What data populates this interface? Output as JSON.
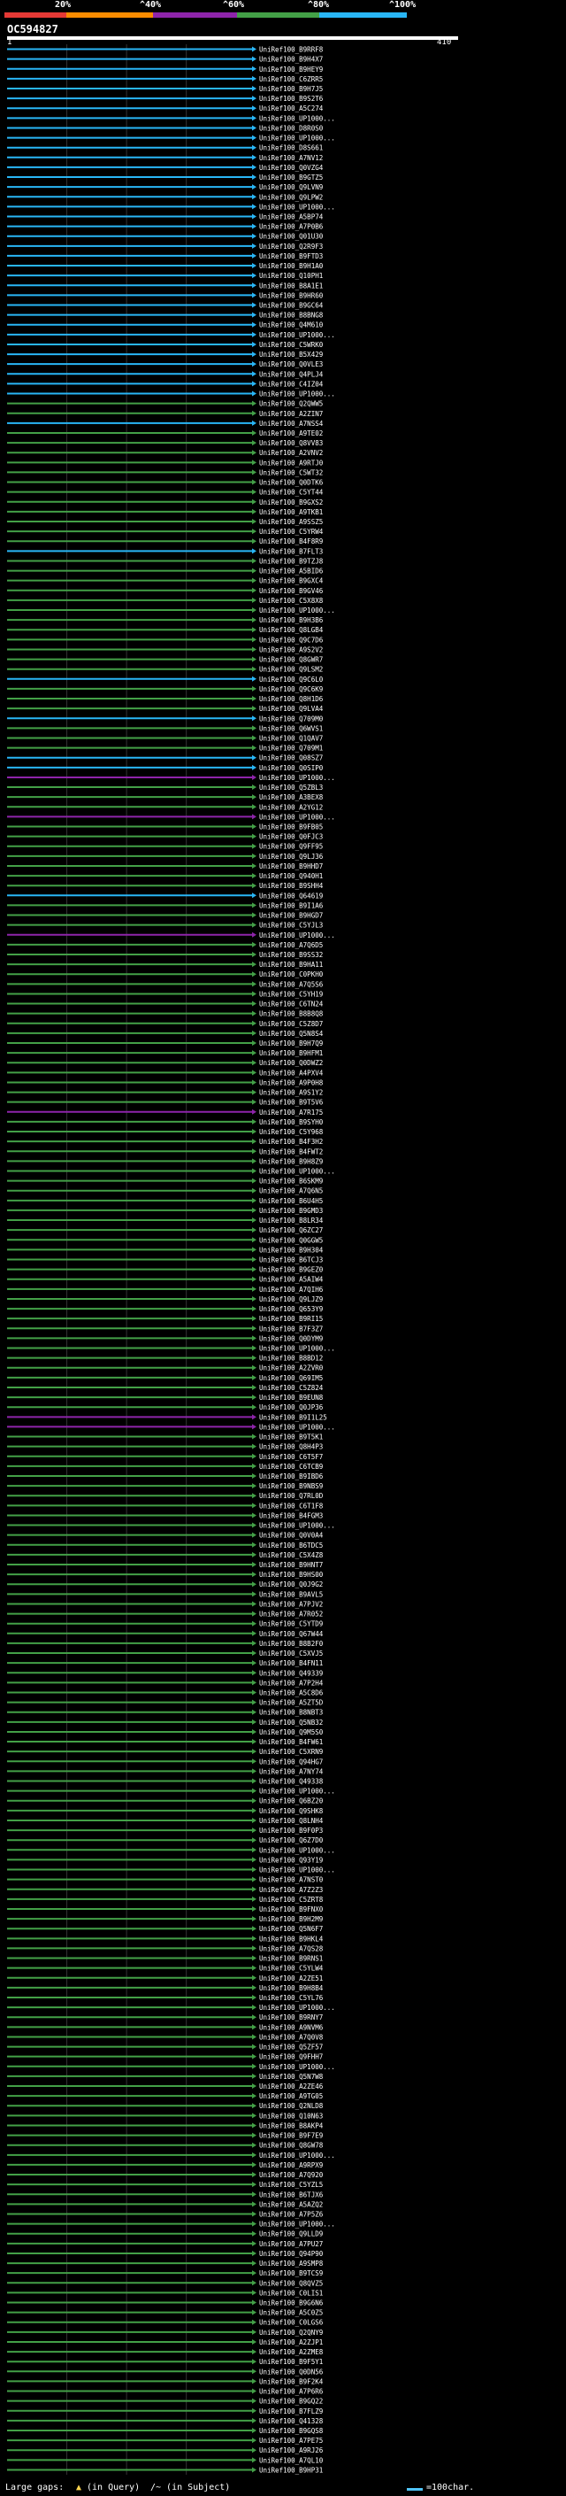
{
  "legend": {
    "labels": [
      "20%",
      "^40%",
      "^60%",
      "^80%",
      "^100%"
    ],
    "colors": [
      "#e53935",
      "#fb8c00",
      "#8e24aa",
      "#43a047",
      "#29b6f6"
    ]
  },
  "header": {
    "query_id": "OC594827",
    "ruler_start": "1",
    "ruler_end": "410"
  },
  "footer": {
    "gaps_label": "Large gaps: ",
    "query_marker": "▲",
    "query_text": "(in Query)",
    "subject_text": "/~ (in Subject)",
    "scale_text": "=100char."
  },
  "chart_data": {
    "type": "alignment",
    "query_length": 410,
    "hits": [
      {
        "id": "UniRef100_B9RRF8",
        "cat": 4
      },
      {
        "id": "UniRef100_B9H4X7",
        "cat": 4
      },
      {
        "id": "UniRef100_B9HEY9",
        "cat": 4
      },
      {
        "id": "UniRef100_C6ZRR5",
        "cat": 4
      },
      {
        "id": "UniRef100_B9H7J5",
        "cat": 4
      },
      {
        "id": "UniRef100_B9S2T6",
        "cat": 4
      },
      {
        "id": "UniRef100_A5C274",
        "cat": 4
      },
      {
        "id": "UniRef100_UP1000...",
        "cat": 4
      },
      {
        "id": "UniRef100_D8R0S0",
        "cat": 4
      },
      {
        "id": "UniRef100_UP1000...",
        "cat": 4
      },
      {
        "id": "UniRef100_D8S661",
        "cat": 4
      },
      {
        "id": "UniRef100_A7NV12",
        "cat": 4
      },
      {
        "id": "UniRef100_Q0VZG4",
        "cat": 4
      },
      {
        "id": "UniRef100_B9GTZ5",
        "cat": 4
      },
      {
        "id": "UniRef100_Q9LVN9",
        "cat": 4
      },
      {
        "id": "UniRef100_Q9LPW2",
        "cat": 4
      },
      {
        "id": "UniRef100_UP1000...",
        "cat": 4
      },
      {
        "id": "UniRef100_A5BP74",
        "cat": 4
      },
      {
        "id": "UniRef100_A7P0B6",
        "cat": 4
      },
      {
        "id": "UniRef100_Q01U30",
        "cat": 4
      },
      {
        "id": "UniRef100_Q2R9F3",
        "cat": 4
      },
      {
        "id": "UniRef100_B9FTD3",
        "cat": 4
      },
      {
        "id": "UniRef100_B9H1A0",
        "cat": 4
      },
      {
        "id": "UniRef100_Q10PH1",
        "cat": 4
      },
      {
        "id": "UniRef100_B8A1E1",
        "cat": 4
      },
      {
        "id": "UniRef100_B9HR60",
        "cat": 4
      },
      {
        "id": "UniRef100_B9GC64",
        "cat": 4
      },
      {
        "id": "UniRef100_B8BNG8",
        "cat": 4
      },
      {
        "id": "UniRef100_Q4M610",
        "cat": 4
      },
      {
        "id": "UniRef100_UP1000...",
        "cat": 4
      },
      {
        "id": "UniRef100_C5WRK0",
        "cat": 4
      },
      {
        "id": "UniRef100_B5X429",
        "cat": 4
      },
      {
        "id": "UniRef100_Q0VLE3",
        "cat": 4
      },
      {
        "id": "UniRef100_Q4PLJ4",
        "cat": 4
      },
      {
        "id": "UniRef100_C4IZ04",
        "cat": 4
      },
      {
        "id": "UniRef100_UP1000...",
        "cat": 4
      },
      {
        "id": "UniRef100_Q2QWW5",
        "cat": 3
      },
      {
        "id": "UniRef100_A2ZIN7",
        "cat": 3
      },
      {
        "id": "UniRef100_A7NSS4",
        "cat": 4
      },
      {
        "id": "UniRef100_A9TE02",
        "cat": 3
      },
      {
        "id": "UniRef100_Q8VV83",
        "cat": 3
      },
      {
        "id": "UniRef100_A2VNV2",
        "cat": 3
      },
      {
        "id": "UniRef100_A9RTJ0",
        "cat": 3
      },
      {
        "id": "UniRef100_C5WT32",
        "cat": 3
      },
      {
        "id": "UniRef100_Q0DTK6",
        "cat": 3
      },
      {
        "id": "UniRef100_C5YT44",
        "cat": 3
      },
      {
        "id": "UniRef100_B9GXS2",
        "cat": 3
      },
      {
        "id": "UniRef100_A9TKB1",
        "cat": 3
      },
      {
        "id": "UniRef100_A9SSZ5",
        "cat": 3
      },
      {
        "id": "UniRef100_C5YRW4",
        "cat": 3
      },
      {
        "id": "UniRef100_B4F8R9",
        "cat": 3
      },
      {
        "id": "UniRef100_B7FLT3",
        "cat": 4
      },
      {
        "id": "UniRef100_B9TZJ8",
        "cat": 3
      },
      {
        "id": "UniRef100_A5BID6",
        "cat": 3
      },
      {
        "id": "UniRef100_B9GXC4",
        "cat": 3
      },
      {
        "id": "UniRef100_B9GV46",
        "cat": 3
      },
      {
        "id": "UniRef100_C5X8X8",
        "cat": 3
      },
      {
        "id": "UniRef100_UP1000...",
        "cat": 3
      },
      {
        "id": "UniRef100_B9H3B6",
        "cat": 3
      },
      {
        "id": "UniRef100_Q8LGB4",
        "cat": 3
      },
      {
        "id": "UniRef100_Q9C7D6",
        "cat": 3
      },
      {
        "id": "UniRef100_A9S2V2",
        "cat": 3
      },
      {
        "id": "UniRef100_Q8GWR7",
        "cat": 3
      },
      {
        "id": "UniRef100_Q9LSM2",
        "cat": 3
      },
      {
        "id": "UniRef100_Q9C6L0",
        "cat": 4
      },
      {
        "id": "UniRef100_Q9C6K9",
        "cat": 3
      },
      {
        "id": "UniRef100_Q8H1D6",
        "cat": 3
      },
      {
        "id": "UniRef100_Q9LVA4",
        "cat": 3
      },
      {
        "id": "UniRef100_Q709M0",
        "cat": 4
      },
      {
        "id": "UniRef100_Q6WVS1",
        "cat": 3
      },
      {
        "id": "UniRef100_Q1QAV7",
        "cat": 3
      },
      {
        "id": "UniRef100_Q709M1",
        "cat": 3
      },
      {
        "id": "UniRef100_Q08SZ7",
        "cat": 4
      },
      {
        "id": "UniRef100_Q0SIP0",
        "cat": 4
      },
      {
        "id": "UniRef100_UP1000...",
        "cat": 2
      },
      {
        "id": "UniRef100_Q5ZBL3",
        "cat": 3
      },
      {
        "id": "UniRef100_A3BEX8",
        "cat": 3
      },
      {
        "id": "UniRef100_A2YG12",
        "cat": 3
      },
      {
        "id": "UniRef100_UP1000...",
        "cat": 2
      },
      {
        "id": "UniRef100_B9FB05",
        "cat": 3
      },
      {
        "id": "UniRef100_Q0FJC3",
        "cat": 3
      },
      {
        "id": "UniRef100_Q9FF95",
        "cat": 3
      },
      {
        "id": "UniRef100_Q9LJ36",
        "cat": 3
      },
      {
        "id": "UniRef100_B9HHD7",
        "cat": 3
      },
      {
        "id": "UniRef100_Q940H1",
        "cat": 3
      },
      {
        "id": "UniRef100_B9SHH4",
        "cat": 3
      },
      {
        "id": "UniRef100_Q64619",
        "cat": 4
      },
      {
        "id": "UniRef100_B9I1A6",
        "cat": 3
      },
      {
        "id": "UniRef100_B9HGD7",
        "cat": 3
      },
      {
        "id": "UniRef100_C5YJL3",
        "cat": 3
      },
      {
        "id": "UniRef100_UP1000...",
        "cat": 2
      },
      {
        "id": "UniRef100_A7Q6D5",
        "cat": 3
      },
      {
        "id": "UniRef100_B9SS32",
        "cat": 3
      },
      {
        "id": "UniRef100_B9HA11",
        "cat": 3
      },
      {
        "id": "UniRef100_C0PKH0",
        "cat": 3
      },
      {
        "id": "UniRef100_A7Q5S6",
        "cat": 3
      },
      {
        "id": "UniRef100_C5YH19",
        "cat": 3
      },
      {
        "id": "UniRef100_C6TN24",
        "cat": 3
      },
      {
        "id": "UniRef100_B8B8Q8",
        "cat": 3
      },
      {
        "id": "UniRef100_C5Z8D7",
        "cat": 3
      },
      {
        "id": "UniRef100_Q5N8S4",
        "cat": 3
      },
      {
        "id": "UniRef100_B9H7Q9",
        "cat": 3
      },
      {
        "id": "UniRef100_B9HFM1",
        "cat": 3
      },
      {
        "id": "UniRef100_Q0DWZ2",
        "cat": 3
      },
      {
        "id": "UniRef100_A4PXV4",
        "cat": 3
      },
      {
        "id": "UniRef100_A9P0H8",
        "cat": 3
      },
      {
        "id": "UniRef100_A9S1Y2",
        "cat": 3
      },
      {
        "id": "UniRef100_B9T5V6",
        "cat": 3
      },
      {
        "id": "UniRef100_A7R175",
        "cat": 2
      },
      {
        "id": "UniRef100_B9SYH0",
        "cat": 3
      },
      {
        "id": "UniRef100_C5Y968",
        "cat": 3
      },
      {
        "id": "UniRef100_B4F3H2",
        "cat": 3
      },
      {
        "id": "UniRef100_B4FWT2",
        "cat": 3
      },
      {
        "id": "UniRef100_B9H8Z9",
        "cat": 3
      },
      {
        "id": "UniRef100_UP1000...",
        "cat": 3
      },
      {
        "id": "UniRef100_B6SKM9",
        "cat": 3
      },
      {
        "id": "UniRef100_A7Q6N5",
        "cat": 3
      },
      {
        "id": "UniRef100_B6U4H5",
        "cat": 3
      },
      {
        "id": "UniRef100_B9GMD3",
        "cat": 3
      },
      {
        "id": "UniRef100_B8LR34",
        "cat": 3
      },
      {
        "id": "UniRef100_Q6ZC27",
        "cat": 3
      },
      {
        "id": "UniRef100_Q0GGW5",
        "cat": 3
      },
      {
        "id": "UniRef100_B9H304",
        "cat": 3
      },
      {
        "id": "UniRef100_B6TCJ3",
        "cat": 3
      },
      {
        "id": "UniRef100_B9GEZ0",
        "cat": 3
      },
      {
        "id": "UniRef100_A5AIW4",
        "cat": 3
      },
      {
        "id": "UniRef100_A7QIH6",
        "cat": 3
      },
      {
        "id": "UniRef100_Q9LJZ9",
        "cat": 3
      },
      {
        "id": "UniRef100_Q653Y9",
        "cat": 3
      },
      {
        "id": "UniRef100_B9RI15",
        "cat": 3
      },
      {
        "id": "UniRef100_B7F3Z7",
        "cat": 3
      },
      {
        "id": "UniRef100_Q0DYM9",
        "cat": 3
      },
      {
        "id": "UniRef100_UP1000...",
        "cat": 3
      },
      {
        "id": "UniRef100_B8BD12",
        "cat": 3
      },
      {
        "id": "UniRef100_A2ZVR0",
        "cat": 3
      },
      {
        "id": "UniRef100_Q69IM5",
        "cat": 3
      },
      {
        "id": "UniRef100_C5Z824",
        "cat": 3
      },
      {
        "id": "UniRef100_B9EUN8",
        "cat": 3
      },
      {
        "id": "UniRef100_Q0JP36",
        "cat": 3
      },
      {
        "id": "UniRef100_B9I1L25",
        "cat": 2
      },
      {
        "id": "UniRef100_UP1000...",
        "cat": 2
      },
      {
        "id": "UniRef100_B9T5K1",
        "cat": 3
      },
      {
        "id": "UniRef100_Q8H4P3",
        "cat": 3
      },
      {
        "id": "UniRef100_C6T5F7",
        "cat": 3
      },
      {
        "id": "UniRef100_C6TCB9",
        "cat": 3
      },
      {
        "id": "UniRef100_B9IBD6",
        "cat": 3
      },
      {
        "id": "UniRef100_B9NBS9",
        "cat": 3
      },
      {
        "id": "UniRef100_Q7RL0D",
        "cat": 3
      },
      {
        "id": "UniRef100_C6T1F8",
        "cat": 3
      },
      {
        "id": "UniRef100_B4FGM3",
        "cat": 3
      },
      {
        "id": "UniRef100_UP1000...",
        "cat": 3
      },
      {
        "id": "UniRef100_Q0V0A4",
        "cat": 3
      },
      {
        "id": "UniRef100_B6TDC5",
        "cat": 3
      },
      {
        "id": "UniRef100_C5X4Z8",
        "cat": 3
      },
      {
        "id": "UniRef100_B9HNT7",
        "cat": 3
      },
      {
        "id": "UniRef100_B9HS00",
        "cat": 3
      },
      {
        "id": "UniRef100_Q0J9G2",
        "cat": 3
      },
      {
        "id": "UniRef100_B9AVL5",
        "cat": 3
      },
      {
        "id": "UniRef100_A7PJV2",
        "cat": 3
      },
      {
        "id": "UniRef100_A7R052",
        "cat": 3
      },
      {
        "id": "UniRef100_C5YTD9",
        "cat": 3
      },
      {
        "id": "UniRef100_Q67W44",
        "cat": 3
      },
      {
        "id": "UniRef100_B8B2F0",
        "cat": 3
      },
      {
        "id": "UniRef100_C5XVJ5",
        "cat": 3
      },
      {
        "id": "UniRef100_B4FN11",
        "cat": 3
      },
      {
        "id": "UniRef100_Q49339",
        "cat": 3
      },
      {
        "id": "UniRef100_A7P2H4",
        "cat": 3
      },
      {
        "id": "UniRef100_A5C8D6",
        "cat": 3
      },
      {
        "id": "UniRef100_A5ZT5D",
        "cat": 3
      },
      {
        "id": "UniRef100_B8NBT3",
        "cat": 3
      },
      {
        "id": "UniRef100_Q5NB32",
        "cat": 3
      },
      {
        "id": "UniRef100_Q9M5S0",
        "cat": 3
      },
      {
        "id": "UniRef100_B4FW61",
        "cat": 3
      },
      {
        "id": "UniRef100_C5XRN9",
        "cat": 3
      },
      {
        "id": "UniRef100_Q94HG7",
        "cat": 3
      },
      {
        "id": "UniRef100_A7NY74",
        "cat": 3
      },
      {
        "id": "UniRef100_Q49338",
        "cat": 3
      },
      {
        "id": "UniRef100_UP1000...",
        "cat": 3
      },
      {
        "id": "UniRef100_Q6BZ20",
        "cat": 3
      },
      {
        "id": "UniRef100_Q9SHK8",
        "cat": 3
      },
      {
        "id": "UniRef100_Q8LNH4",
        "cat": 3
      },
      {
        "id": "UniRef100_B9F0P3",
        "cat": 3
      },
      {
        "id": "UniRef100_Q6Z7D0",
        "cat": 3
      },
      {
        "id": "UniRef100_UP1000...",
        "cat": 3
      },
      {
        "id": "UniRef100_Q93Y19",
        "cat": 3
      },
      {
        "id": "UniRef100_UP1000...",
        "cat": 3
      },
      {
        "id": "UniRef100_A7NST0",
        "cat": 3
      },
      {
        "id": "UniRef100_A7Z2Z3",
        "cat": 3
      },
      {
        "id": "UniRef100_C5ZRT8",
        "cat": 3
      },
      {
        "id": "UniRef100_B9FNX0",
        "cat": 3
      },
      {
        "id": "UniRef100_B9H2M9",
        "cat": 3
      },
      {
        "id": "UniRef100_Q5N6F7",
        "cat": 3
      },
      {
        "id": "UniRef100_B9HKL4",
        "cat": 3
      },
      {
        "id": "UniRef100_A7QS28",
        "cat": 3
      },
      {
        "id": "UniRef100_B9RNS1",
        "cat": 3
      },
      {
        "id": "UniRef100_C5YLW4",
        "cat": 3
      },
      {
        "id": "UniRef100_A2ZE51",
        "cat": 3
      },
      {
        "id": "UniRef100_B9H8B4",
        "cat": 3
      },
      {
        "id": "UniRef100_C5YL76",
        "cat": 3
      },
      {
        "id": "UniRef100_UP1000...",
        "cat": 3
      },
      {
        "id": "UniRef100_B9RNY7",
        "cat": 3
      },
      {
        "id": "UniRef100_A9NVM6",
        "cat": 3
      },
      {
        "id": "UniRef100_A7Q0V8",
        "cat": 3
      },
      {
        "id": "UniRef100_Q5ZF57",
        "cat": 3
      },
      {
        "id": "UniRef100_Q9FHH7",
        "cat": 3
      },
      {
        "id": "UniRef100_UP1000...",
        "cat": 3
      },
      {
        "id": "UniRef100_Q5N7W8",
        "cat": 3
      },
      {
        "id": "UniRef100_A2ZE46",
        "cat": 3
      },
      {
        "id": "UniRef100_A9TG05",
        "cat": 3
      },
      {
        "id": "UniRef100_Q2NLD8",
        "cat": 3
      },
      {
        "id": "UniRef100_Q10N63",
        "cat": 3
      },
      {
        "id": "UniRef100_B8AKP4",
        "cat": 3
      },
      {
        "id": "UniRef100_B9F7E9",
        "cat": 3
      },
      {
        "id": "UniRef100_Q8GW78",
        "cat": 3
      },
      {
        "id": "UniRef100_UP1000...",
        "cat": 3
      },
      {
        "id": "UniRef100_A9RPX9",
        "cat": 3
      },
      {
        "id": "UniRef100_A7Q920",
        "cat": 3
      },
      {
        "id": "UniRef100_C5YZL5",
        "cat": 3
      },
      {
        "id": "UniRef100_B6TJX6",
        "cat": 3
      },
      {
        "id": "UniRef100_A5AZQ2",
        "cat": 3
      },
      {
        "id": "UniRef100_A7P5Z6",
        "cat": 3
      },
      {
        "id": "UniRef100_UP1000...",
        "cat": 3
      },
      {
        "id": "UniRef100_Q9LLD9",
        "cat": 3
      },
      {
        "id": "UniRef100_A7PU27",
        "cat": 3
      },
      {
        "id": "UniRef100_Q94P90",
        "cat": 3
      },
      {
        "id": "UniRef100_A9SMP8",
        "cat": 3
      },
      {
        "id": "UniRef100_B9TCS9",
        "cat": 3
      },
      {
        "id": "UniRef100_Q8QVZ5",
        "cat": 3
      },
      {
        "id": "UniRef100_C0LIS1",
        "cat": 3
      },
      {
        "id": "UniRef100_B9G6N6",
        "cat": 3
      },
      {
        "id": "UniRef100_A5C0Z5",
        "cat": 3
      },
      {
        "id": "UniRef100_C0LGS6",
        "cat": 3
      },
      {
        "id": "UniRef100_Q2QNY9",
        "cat": 3
      },
      {
        "id": "UniRef100_A2ZJP1",
        "cat": 3
      },
      {
        "id": "UniRef100_A2ZME8",
        "cat": 3
      },
      {
        "id": "UniRef100_B9F5Y1",
        "cat": 3
      },
      {
        "id": "UniRef100_Q0DN56",
        "cat": 3
      },
      {
        "id": "UniRef100_B9F2K4",
        "cat": 3
      },
      {
        "id": "UniRef100_A7P6R6",
        "cat": 3
      },
      {
        "id": "UniRef100_B9GQ22",
        "cat": 3
      },
      {
        "id": "UniRef100_B7FLZ9",
        "cat": 3
      },
      {
        "id": "UniRef100_Q41328",
        "cat": 3
      },
      {
        "id": "UniRef100_B9GQS8",
        "cat": 3
      },
      {
        "id": "UniRef100_A7PE75",
        "cat": 3
      },
      {
        "id": "UniRef100_A9RJ26",
        "cat": 3
      },
      {
        "id": "UniRef100_A7QL10",
        "cat": 3
      },
      {
        "id": "UniRef100_B9HP31",
        "cat": 3
      }
    ]
  }
}
